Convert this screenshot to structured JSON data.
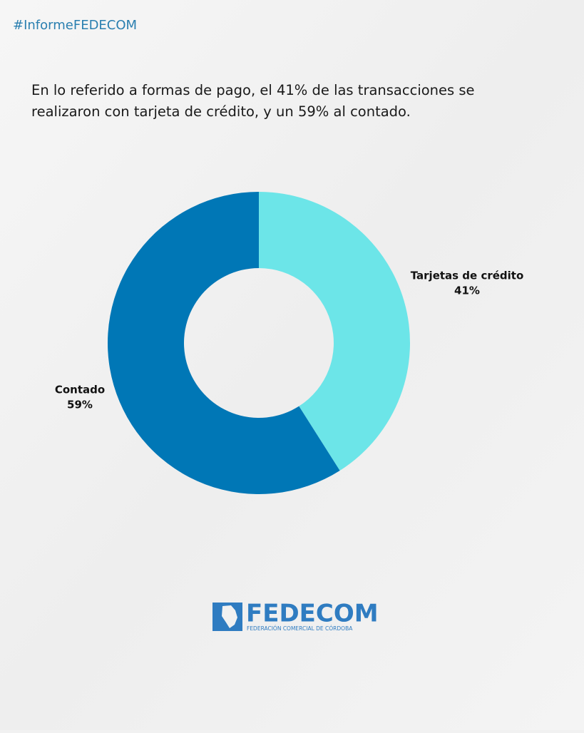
{
  "header": {
    "hashtag": "#InformeFEDECOM",
    "description": "En lo referido a formas de pago, el 41% de las transacciones se realizaron con tarjeta de crédito, y un 59% al contado."
  },
  "chart_data": {
    "type": "donut",
    "categories": [
      "Tarjetas de crédito",
      "Contado"
    ],
    "values": [
      41,
      59
    ],
    "value_labels": [
      "41%",
      "59%"
    ],
    "colors": [
      "#6ce5e8",
      "#0077b6"
    ]
  },
  "footer": {
    "logo": "FEDECOM",
    "logo_subtitle": "FEDERACIÓN COMERCIAL DE CÓRDOBA"
  }
}
